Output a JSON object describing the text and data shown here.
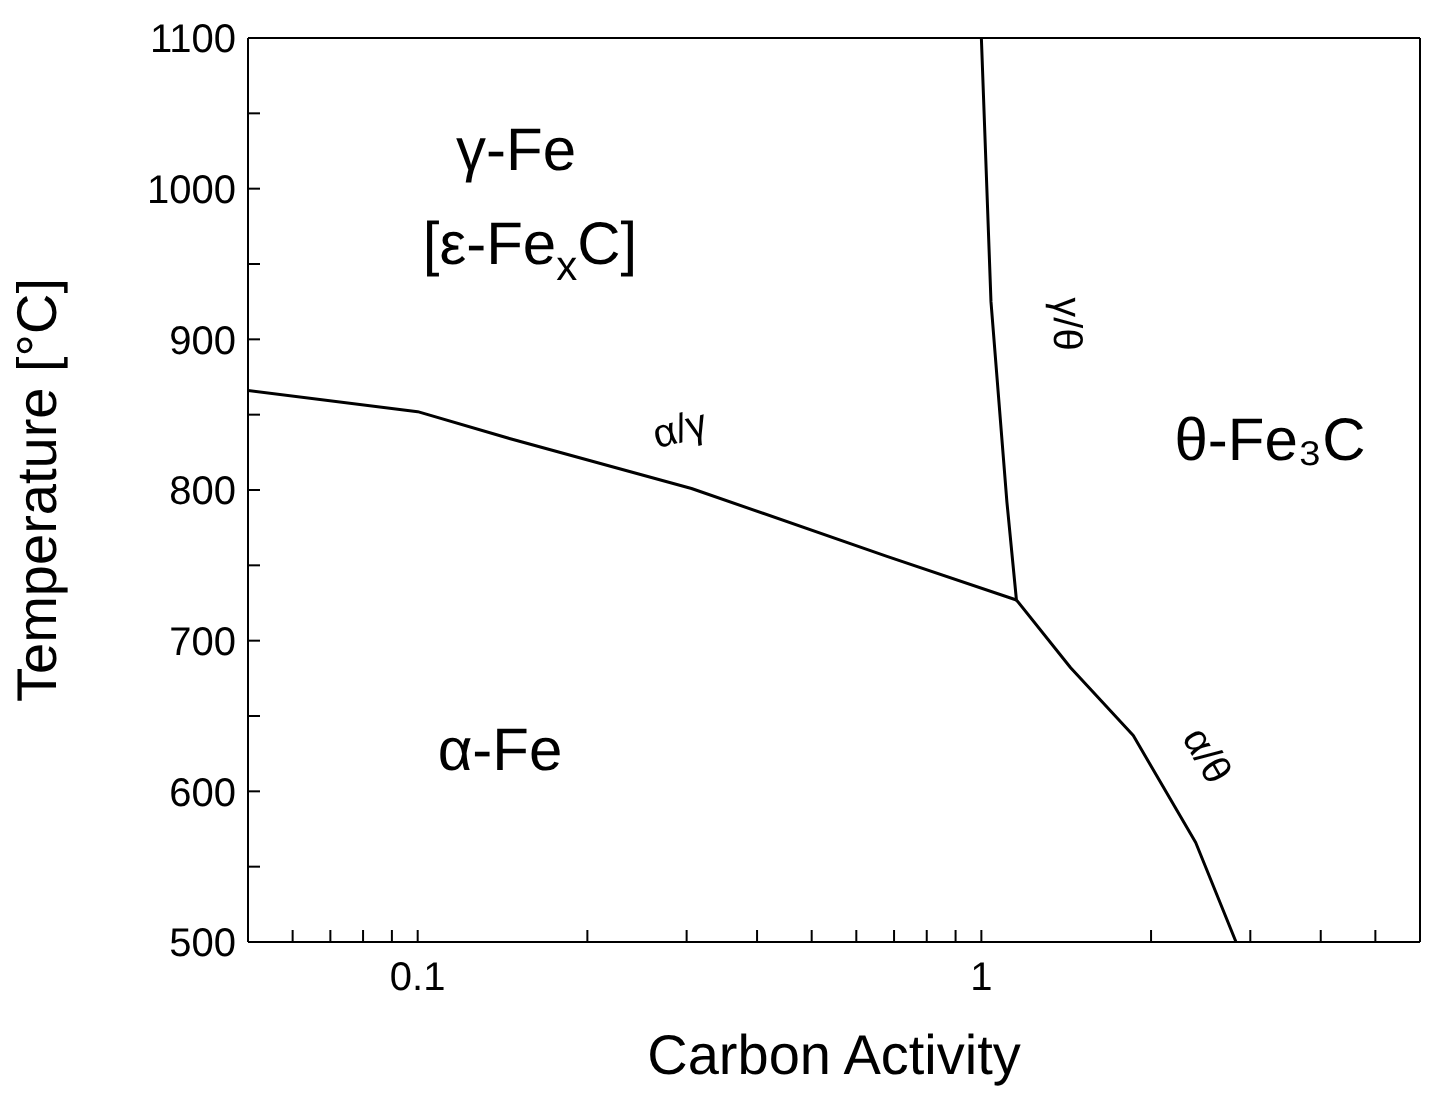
{
  "chart_data": {
    "type": "line",
    "xlabel": "Carbon Activity",
    "ylabel": "Temperature [°C]",
    "log": "x",
    "xlim": [
      0.05,
      6
    ],
    "xticks": [
      {
        "value": 0.05,
        "label": null
      },
      {
        "value": 0.06,
        "label": null
      },
      {
        "value": 0.07,
        "label": null
      },
      {
        "value": 0.08,
        "label": null
      },
      {
        "value": 0.09,
        "label": null
      },
      0.1,
      {
        "value": 0.2,
        "label": null
      },
      {
        "value": 0.3,
        "label": null
      },
      {
        "value": 0.4,
        "label": null
      },
      {
        "value": 0.5,
        "label": null
      },
      {
        "value": 0.6,
        "label": null
      },
      {
        "value": 0.7,
        "label": null
      },
      {
        "value": 0.8,
        "label": null
      },
      {
        "value": 0.9,
        "label": null
      },
      1,
      {
        "value": 2,
        "label": null
      },
      {
        "value": 3,
        "label": null
      },
      {
        "value": 4,
        "label": null
      },
      {
        "value": 5,
        "label": null
      }
    ],
    "ylim": [
      500,
      1100
    ],
    "yticks": [
      500,
      {
        "value": 550,
        "label": null
      },
      600,
      {
        "value": 650,
        "label": null
      },
      700,
      {
        "value": 750,
        "label": null
      },
      800,
      {
        "value": 850,
        "label": null
      },
      900,
      {
        "value": 950,
        "label": null
      },
      1000,
      {
        "value": 1050,
        "label": null
      },
      1100
    ],
    "grid": false,
    "legend": false,
    "marker": "none",
    "line_style": "solid",
    "series": [
      {
        "color": "#000000",
        "x": [
          0.05,
          0.1,
          0.146,
          0.306,
          0.68,
          1.154
        ],
        "values": [
          866,
          852,
          834,
          801,
          756,
          727
        ]
      },
      {
        "color": "#000000",
        "x": [
          1.0,
          1.04,
          1.11,
          1.154
        ],
        "values": [
          1100,
          925,
          792,
          727
        ]
      },
      {
        "color": "#000000",
        "x": [
          1.154,
          1.44,
          1.86,
          2.4,
          2.83
        ],
        "values": [
          727,
          682,
          637,
          566,
          500
        ]
      }
    ],
    "annotations": [
      "γ-Fe",
      "[ε-Fe$_{x}$C]",
      "θ-Fe₃C",
      "α-Fe",
      "α/γ",
      "γ/θ",
      "α/θ"
    ]
  }
}
